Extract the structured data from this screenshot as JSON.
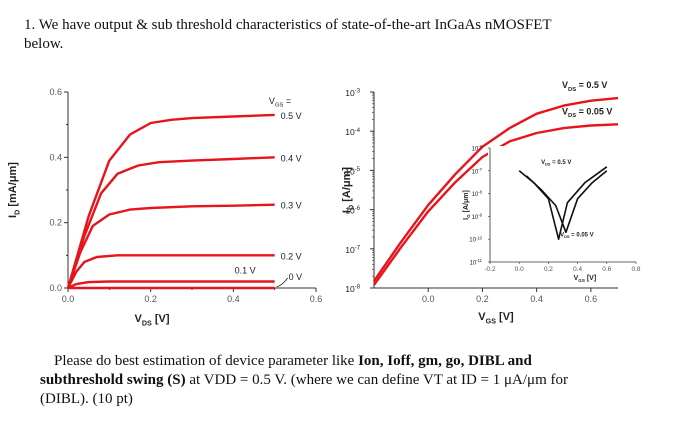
{
  "question_header": {
    "line1": "1. We have output & sub threshold characteristics of state-of-the-art InGaAs nMOSFET",
    "line2": "below."
  },
  "question_body": {
    "lead": "Please do best estimation of device parameter like ",
    "params": "Ion, Ioff, gm, go, DIBL and",
    "line2_bold": "subthreshold swing (S)",
    "line2_rest": " at VDD = 0.5 V. (where we can define VT at ID = 1 μA/μm for",
    "line3": "(DIBL). (10 pt)"
  },
  "chart_data": [
    {
      "type": "line",
      "title": "",
      "xlabel": "VDS [V]",
      "ylabel": "ID [mA/μm]",
      "xlim": [
        0,
        0.6
      ],
      "ylim": [
        0,
        0.6
      ],
      "xticks": [
        "0.0",
        "0.2",
        "0.4",
        "0.6"
      ],
      "yticks": [
        "0.0",
        "0.2",
        "0.4",
        "0.6"
      ],
      "legend_label": "VGS =",
      "series": [
        {
          "name": "0.5 V",
          "points": [
            [
              0,
              0
            ],
            [
              0.05,
              0.22
            ],
            [
              0.1,
              0.39
            ],
            [
              0.15,
              0.47
            ],
            [
              0.2,
              0.505
            ],
            [
              0.25,
              0.515
            ],
            [
              0.3,
              0.52
            ],
            [
              0.4,
              0.525
            ],
            [
              0.5,
              0.53
            ]
          ]
        },
        {
          "name": "0.4 V",
          "points": [
            [
              0,
              0
            ],
            [
              0.04,
              0.16
            ],
            [
              0.08,
              0.29
            ],
            [
              0.12,
              0.35
            ],
            [
              0.17,
              0.375
            ],
            [
              0.22,
              0.385
            ],
            [
              0.3,
              0.39
            ],
            [
              0.4,
              0.395
            ],
            [
              0.5,
              0.4
            ]
          ]
        },
        {
          "name": "0.3 V",
          "points": [
            [
              0,
              0
            ],
            [
              0.03,
              0.11
            ],
            [
              0.06,
              0.19
            ],
            [
              0.1,
              0.225
            ],
            [
              0.15,
              0.24
            ],
            [
              0.2,
              0.245
            ],
            [
              0.3,
              0.25
            ],
            [
              0.4,
              0.252
            ],
            [
              0.5,
              0.255
            ]
          ]
        },
        {
          "name": "0.2 V",
          "points": [
            [
              0,
              0
            ],
            [
              0.02,
              0.05
            ],
            [
              0.04,
              0.08
            ],
            [
              0.07,
              0.095
            ],
            [
              0.12,
              0.1
            ],
            [
              0.2,
              0.1
            ],
            [
              0.3,
              0.1
            ],
            [
              0.4,
              0.1
            ],
            [
              0.5,
              0.1
            ]
          ]
        },
        {
          "name": "0.1 V",
          "points": [
            [
              0,
              0
            ],
            [
              0.02,
              0.012
            ],
            [
              0.05,
              0.018
            ],
            [
              0.1,
              0.02
            ],
            [
              0.2,
              0.02
            ],
            [
              0.3,
              0.02
            ],
            [
              0.4,
              0.02
            ],
            [
              0.5,
              0.02
            ]
          ]
        },
        {
          "name": "0 V",
          "points": [
            [
              0,
              0
            ],
            [
              0.5,
              0
            ]
          ]
        }
      ],
      "line_color": "#e8141c",
      "grid": false
    },
    {
      "type": "line",
      "title": "",
      "xlabel": "VGS [V]",
      "ylabel": "ID [A/μm]",
      "yscale": "log",
      "xlim": [
        -0.2,
        0.7
      ],
      "ylim": [
        1e-08,
        0.001
      ],
      "xticks": [
        "0.0",
        "0.2",
        "0.4",
        "0.6"
      ],
      "yticks": [
        "10-3",
        "10-4",
        "10-5",
        "10-6",
        "10-7",
        "10-8"
      ],
      "series": [
        {
          "name": "VDS = 0.5 V",
          "points": [
            [
              -0.2,
              1.5e-08
            ],
            [
              -0.1,
              1.5e-07
            ],
            [
              0.0,
              1.3e-06
            ],
            [
              0.1,
              8e-06
            ],
            [
              0.2,
              4e-05
            ],
            [
              0.3,
              0.00012
            ],
            [
              0.4,
              0.00028
            ],
            [
              0.5,
              0.00045
            ],
            [
              0.6,
              0.0006
            ],
            [
              0.7,
              0.0007
            ]
          ]
        },
        {
          "name": "VDS = 0.05 V",
          "points": [
            [
              -0.2,
              1.2e-08
            ],
            [
              -0.1,
              1.1e-07
            ],
            [
              0.0,
              9e-07
            ],
            [
              0.1,
              5e-06
            ],
            [
              0.2,
              2.2e-05
            ],
            [
              0.3,
              5.5e-05
            ],
            [
              0.4,
              9e-05
            ],
            [
              0.5,
              0.00012
            ],
            [
              0.6,
              0.00014
            ],
            [
              0.7,
              0.00015
            ]
          ]
        }
      ],
      "line_color": "#e8141c",
      "inset": {
        "type": "line",
        "xlabel": "VGS [V]",
        "ylabel": "IG [A/μm]",
        "yscale": "log",
        "xlim": [
          -0.2,
          0.8
        ],
        "ylim": [
          1e-11,
          1e-06
        ],
        "xticks": [
          "-0.2",
          "0.0",
          "0.2",
          "0.4",
          "0.6",
          "0.8"
        ],
        "yticks": [
          "10-6",
          "10-7",
          "10-8",
          "10-9",
          "10-10",
          "10-11"
        ],
        "series": [
          {
            "name": "VDS = 0.5 V",
            "points": [
              [
                0.0,
                1e-07
              ],
              [
                0.1,
                3e-08
              ],
              [
                0.2,
                6e-09
              ],
              [
                0.27,
                1e-10
              ],
              [
                0.33,
                4e-09
              ],
              [
                0.45,
                3e-08
              ],
              [
                0.6,
                1.5e-07
              ]
            ]
          },
          {
            "name": "VDS = 0.05 V",
            "points": [
              [
                0.05,
                6e-08
              ],
              [
                0.15,
                1.5e-08
              ],
              [
                0.25,
                3e-09
              ],
              [
                0.32,
                2e-10
              ],
              [
                0.4,
                6e-09
              ],
              [
                0.5,
                3e-08
              ],
              [
                0.6,
                1e-07
              ]
            ]
          }
        ],
        "line_color": "#111111"
      }
    }
  ]
}
